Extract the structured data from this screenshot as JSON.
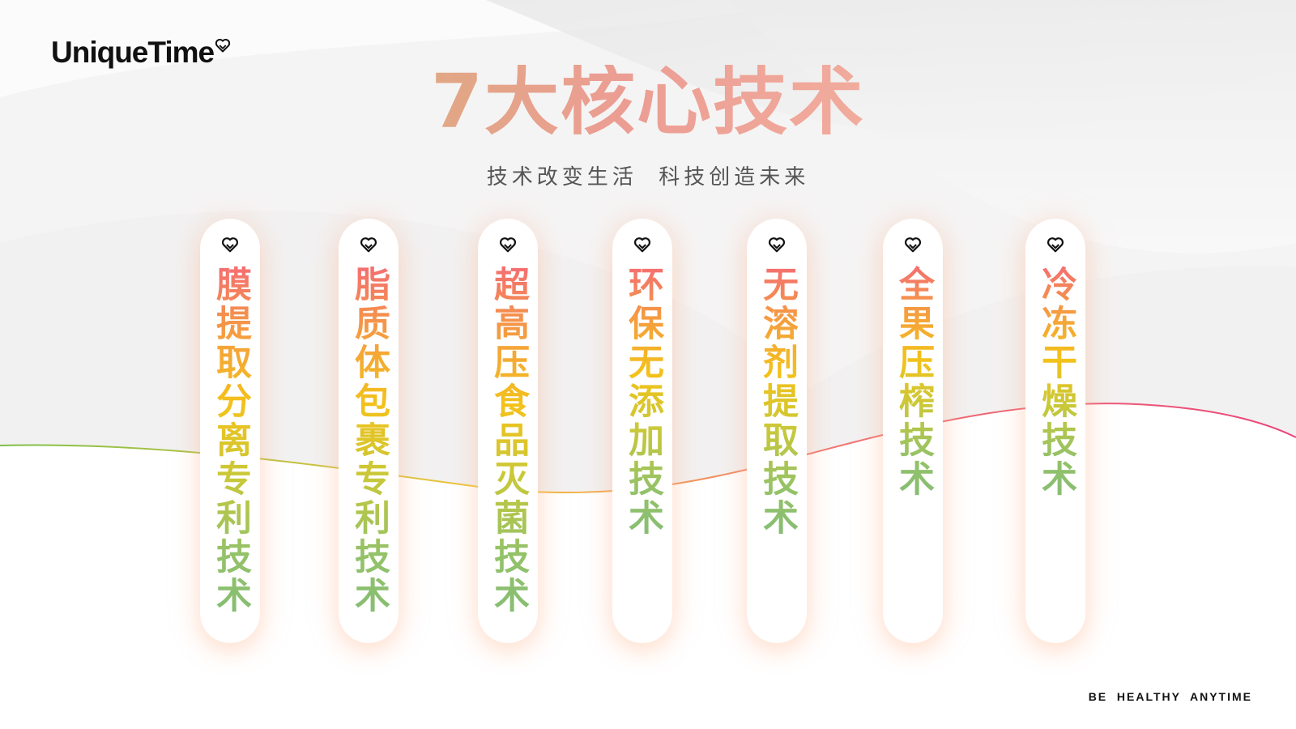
{
  "brand": {
    "logo_text": "UniqueTime",
    "logo_icon": "heart-icon"
  },
  "header": {
    "title": "7大核心技术",
    "subtitle": "技术改变生活  科技创造未来"
  },
  "technologies": [
    {
      "label": "膜提取分离专利技术",
      "icon": "heart-icon"
    },
    {
      "label": "脂质体包裹专利技术",
      "icon": "heart-icon"
    },
    {
      "label": "超高压食品灭菌技术",
      "icon": "heart-icon"
    },
    {
      "label": "环保无添加技术",
      "icon": "heart-icon"
    },
    {
      "label": "无溶剂提取技术",
      "icon": "heart-icon"
    },
    {
      "label": "全果压榨技术",
      "icon": "heart-icon"
    },
    {
      "label": "冷冻干燥技术",
      "icon": "heart-icon"
    }
  ],
  "footer": {
    "tagline": "BE  HEALTHY  ANYTIME"
  },
  "colors": {
    "title_gradient": [
      "#b7c46a",
      "#ec9d93",
      "#f7d2ac"
    ],
    "label_gradient": [
      "#f46e72",
      "#f5a23a",
      "#f3c21a",
      "#94c268"
    ],
    "wave_line": [
      "#7fbf4a",
      "#f2c43a",
      "#f27a70",
      "#e8457a"
    ]
  }
}
